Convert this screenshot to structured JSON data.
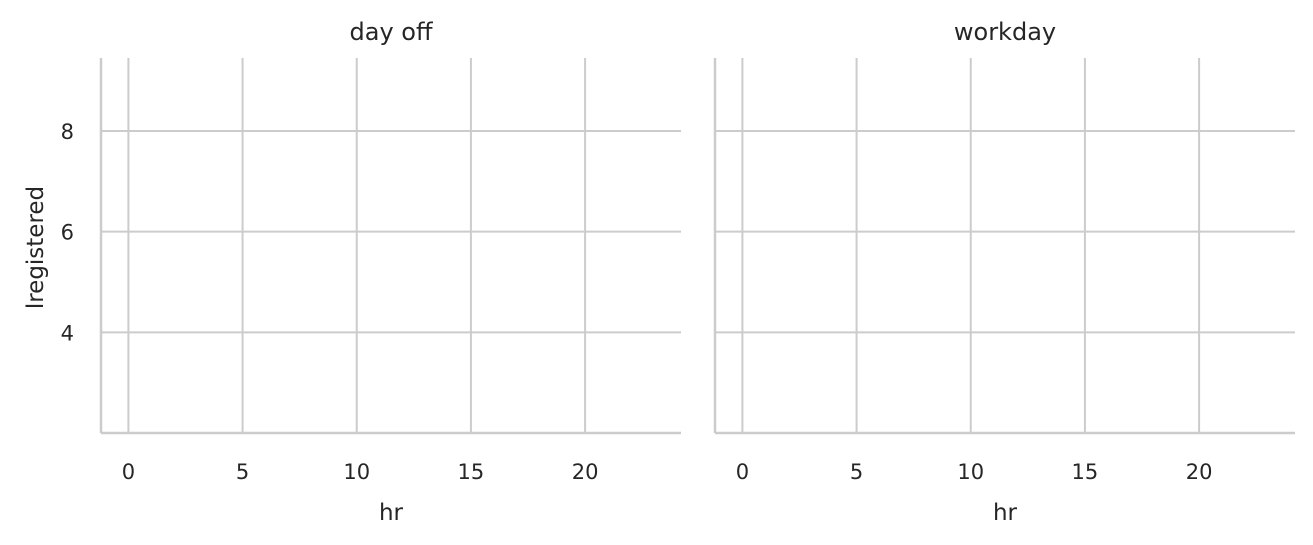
{
  "chart_data": [
    {
      "type": "scatter",
      "title": "day off",
      "xlabel": "hr",
      "ylabel": "lregistered",
      "xlim": [
        -1.2,
        24.2
      ],
      "ylim": [
        2.0,
        9.45
      ],
      "xticks": [
        0,
        5,
        10,
        15,
        20
      ],
      "yticks": [
        4,
        6,
        8
      ],
      "xtick_labels": [
        "0",
        "5",
        "10",
        "15",
        "20"
      ],
      "ytick_labels": [
        "4",
        "6",
        "8"
      ],
      "grid": true,
      "series": []
    },
    {
      "type": "scatter",
      "title": "workday",
      "xlabel": "hr",
      "ylabel": "",
      "xlim": [
        -1.2,
        24.2
      ],
      "ylim": [
        2.0,
        9.45
      ],
      "xticks": [
        0,
        5,
        10,
        15,
        20
      ],
      "yticks": [
        4,
        6,
        8
      ],
      "xtick_labels": [
        "0",
        "5",
        "10",
        "15",
        "20"
      ],
      "ytick_labels": [],
      "grid": true,
      "series": []
    }
  ]
}
